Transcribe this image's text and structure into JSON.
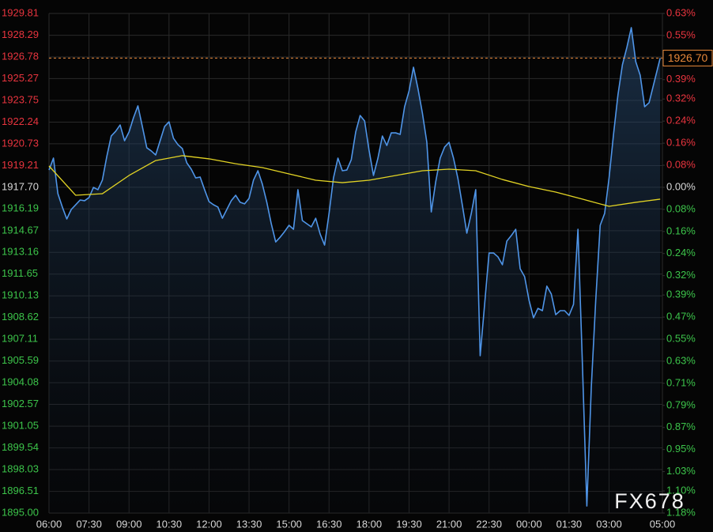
{
  "chart_data": {
    "type": "line",
    "x": [
      0,
      10,
      20,
      30,
      40,
      50,
      60,
      70,
      80,
      90,
      100,
      110,
      120,
      130,
      140,
      150,
      160,
      170,
      180,
      190,
      200,
      210,
      220,
      230,
      240,
      250,
      260,
      270,
      280,
      290,
      300,
      310,
      320,
      330,
      340,
      350,
      360,
      370,
      380,
      390,
      400,
      410,
      420,
      430,
      440,
      450,
      460,
      470,
      480,
      490,
      500,
      510,
      520,
      530,
      540,
      550,
      560,
      570,
      580,
      590,
      600,
      610,
      620,
      630,
      640,
      650,
      660,
      670,
      680,
      690,
      700,
      710,
      720,
      730,
      740,
      750,
      760,
      770,
      780,
      790,
      800,
      810,
      820,
      830,
      840,
      850,
      860,
      870,
      880,
      890,
      900,
      910,
      920,
      930,
      940,
      950,
      960,
      970,
      980,
      990,
      1000,
      1010,
      1020,
      1030,
      1040,
      1050,
      1060,
      1070,
      1080,
      1090,
      1100,
      1110,
      1120,
      1130,
      1140,
      1150,
      1160,
      1170,
      1180,
      1190,
      1200,
      1210,
      1220,
      1230,
      1240,
      1250,
      1260,
      1270,
      1280,
      1290,
      1300,
      1310,
      1320,
      1330,
      1340,
      1350,
      1375
    ],
    "series": [
      {
        "color": "#4f95e8",
        "values": [
          1918.9,
          1919.73,
          1917.25,
          1916.32,
          1915.49,
          1916.15,
          1916.48,
          1916.81,
          1916.76,
          1916.98,
          1917.69,
          1917.53,
          1918.19,
          1919.84,
          1921.27,
          1921.6,
          1922.04,
          1920.94,
          1921.55,
          1922.54,
          1923.37,
          1921.93,
          1920.45,
          1920.23,
          1919.95,
          1920.94,
          1921.93,
          1922.26,
          1921.11,
          1920.67,
          1920.39,
          1919.4,
          1918.96,
          1918.35,
          1918.41,
          1917.53,
          1916.7,
          1916.48,
          1916.32,
          1915.54,
          1916.15,
          1916.76,
          1917.14,
          1916.65,
          1916.54,
          1916.92,
          1918.19,
          1918.85,
          1917.91,
          1916.65,
          1915.16,
          1913.89,
          1914.22,
          1914.61,
          1915.05,
          1914.77,
          1917.53,
          1915.38,
          1915.16,
          1914.94,
          1915.54,
          1914.44,
          1913.67,
          1915.87,
          1918.35,
          1919.73,
          1918.85,
          1918.9,
          1919.62,
          1921.55,
          1922.7,
          1922.32,
          1920.28,
          1918.52,
          1919.73,
          1921.27,
          1920.61,
          1921.49,
          1921.49,
          1921.38,
          1923.31,
          1924.41,
          1926.06,
          1924.58,
          1922.87,
          1920.83,
          1915.98,
          1918.08,
          1919.73,
          1920.5,
          1920.83,
          1919.73,
          1918.3,
          1916.43,
          1914.5,
          1915.87,
          1917.53,
          1905.96,
          1909.54,
          1913.12,
          1913.12,
          1912.85,
          1912.3,
          1913.95,
          1914.33,
          1914.77,
          1912.02,
          1911.47,
          1909.82,
          1908.6,
          1909.26,
          1909.1,
          1910.81,
          1910.26,
          1908.82,
          1909.1,
          1909.1,
          1908.77,
          1909.54,
          1914.77,
          1905.41,
          1895.49,
          1903.76,
          1909.82,
          1915.05,
          1915.87,
          1918.35,
          1921.38,
          1924.14,
          1926.23,
          1927.44,
          1928.82,
          1926.45,
          1925.51,
          1923.31,
          1923.59,
          1926.7
        ]
      },
      {
        "color": "#e3d424",
        "x": [
          0,
          60,
          120,
          180,
          240,
          300,
          360,
          420,
          480,
          540,
          600,
          660,
          720,
          780,
          840,
          900,
          960,
          1020,
          1080,
          1140,
          1200,
          1260,
          1320,
          1375
        ],
        "values": [
          1919.18,
          1917.14,
          1917.25,
          1918.52,
          1919.56,
          1919.9,
          1919.68,
          1919.34,
          1919.07,
          1918.63,
          1918.19,
          1918.02,
          1918.19,
          1918.52,
          1918.85,
          1918.96,
          1918.85,
          1918.24,
          1917.75,
          1917.36,
          1916.87,
          1916.37,
          1916.65,
          1916.87
        ]
      }
    ],
    "xlim": [
      0,
      1380
    ],
    "xticks": [
      {
        "value": 0,
        "label": "06:00"
      },
      {
        "value": 90,
        "label": "07:30"
      },
      {
        "value": 180,
        "label": "09:00"
      },
      {
        "value": 270,
        "label": "10:30"
      },
      {
        "value": 360,
        "label": "12:00"
      },
      {
        "value": 450,
        "label": "13:30"
      },
      {
        "value": 540,
        "label": "15:00"
      },
      {
        "value": 630,
        "label": "16:30"
      },
      {
        "value": 720,
        "label": "18:00"
      },
      {
        "value": 810,
        "label": "19:30"
      },
      {
        "value": 900,
        "label": "21:00"
      },
      {
        "value": 990,
        "label": "22:30"
      },
      {
        "value": 1080,
        "label": "00:00"
      },
      {
        "value": 1170,
        "label": "01:30"
      },
      {
        "value": 1260,
        "label": "03:00"
      },
      {
        "value": 1380,
        "label": "05:00"
      }
    ],
    "ylim": [
      1895,
      1929.81
    ],
    "yticks": [
      1929.81,
      1928.29,
      1926.78,
      1925.27,
      1923.75,
      1922.24,
      1920.73,
      1919.21,
      {
        "value": 1917.7,
        "label": "1917.70"
      },
      1916.19,
      1914.67,
      1913.16,
      1911.65,
      1910.13,
      1908.62,
      1907.11,
      1905.59,
      1904.08,
      1902.57,
      1901.05,
      1899.54,
      1898.03,
      1896.51,
      {
        "value": 1895,
        "label": "1895.00"
      }
    ],
    "y2lim": [
      -1.18,
      0.63
    ],
    "y2ticks": [
      {
        "value": 0.63,
        "label": "0.63%"
      },
      {
        "value": 0.55,
        "label": "0.55%"
      },
      {
        "value": 0.47,
        "label": "0.47%"
      },
      {
        "value": 0.39,
        "label": "0.39%"
      },
      {
        "value": 0.32,
        "label": "0.32%"
      },
      {
        "value": 0.24,
        "label": "0.24%"
      },
      {
        "value": 0.16,
        "label": "0.16%"
      },
      {
        "value": 0.08,
        "label": "0.08%"
      },
      {
        "value": 0,
        "label": "0.00%"
      },
      {
        "value": -0.08,
        "label": "0.08%"
      },
      {
        "value": -0.16,
        "label": "0.16%"
      },
      {
        "value": -0.24,
        "label": "0.24%"
      },
      {
        "value": -0.32,
        "label": "0.32%"
      },
      {
        "value": -0.39,
        "label": "0.39%"
      },
      {
        "value": -0.47,
        "label": "0.47%"
      },
      {
        "value": -0.55,
        "label": "0.55%"
      },
      {
        "value": -0.63,
        "label": "0.63%"
      },
      {
        "value": -0.71,
        "label": "0.71%"
      },
      {
        "value": -0.79,
        "label": "0.79%"
      },
      {
        "value": -0.87,
        "label": "0.87%"
      },
      {
        "value": -0.95,
        "label": "0.95%"
      },
      {
        "value": -1.03,
        "label": "1.03%"
      },
      {
        "value": -1.1,
        "label": "1.10%"
      },
      {
        "value": -1.18,
        "label": "1.18%"
      }
    ],
    "grid": true,
    "tick_colors": {
      "up": "#e8343e",
      "flat": "#d8d8d8",
      "down": "#3cc44a"
    },
    "reference_line": {
      "value": 1926.7,
      "label": "1926.70",
      "color": "#e8893a"
    },
    "watermark": "FX678"
  }
}
